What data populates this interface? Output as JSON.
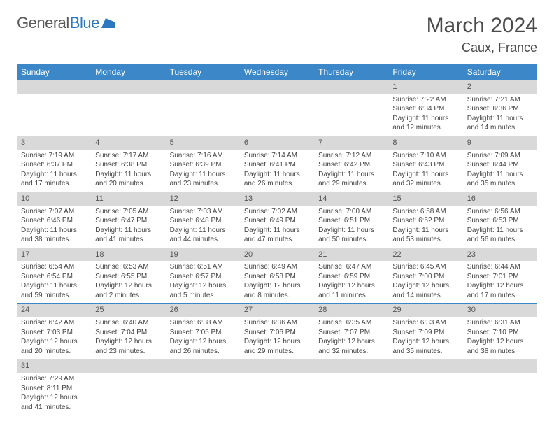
{
  "logo": {
    "part1": "General",
    "part2": "Blue"
  },
  "title": "March 2024",
  "location": "Caux, France",
  "colors": {
    "header_bg": "#3b87c8",
    "header_fg": "#ffffff",
    "daynum_bg": "#d9d9d9",
    "row_border": "#3b87c8",
    "text": "#444444",
    "title": "#4a4a4a"
  },
  "fonts": {
    "title_size": 30,
    "location_size": 18,
    "header_size": 12,
    "cell_size": 10
  },
  "grid": {
    "cols": 7,
    "rows": 6,
    "leading_blanks": 5
  },
  "weekday_headers": [
    "Sunday",
    "Monday",
    "Tuesday",
    "Wednesday",
    "Thursday",
    "Friday",
    "Saturday"
  ],
  "days": [
    {
      "n": 1,
      "sr": "7:22 AM",
      "ss": "6:34 PM",
      "dl": "11 hours and 12 minutes."
    },
    {
      "n": 2,
      "sr": "7:21 AM",
      "ss": "6:36 PM",
      "dl": "11 hours and 14 minutes."
    },
    {
      "n": 3,
      "sr": "7:19 AM",
      "ss": "6:37 PM",
      "dl": "11 hours and 17 minutes."
    },
    {
      "n": 4,
      "sr": "7:17 AM",
      "ss": "6:38 PM",
      "dl": "11 hours and 20 minutes."
    },
    {
      "n": 5,
      "sr": "7:16 AM",
      "ss": "6:39 PM",
      "dl": "11 hours and 23 minutes."
    },
    {
      "n": 6,
      "sr": "7:14 AM",
      "ss": "6:41 PM",
      "dl": "11 hours and 26 minutes."
    },
    {
      "n": 7,
      "sr": "7:12 AM",
      "ss": "6:42 PM",
      "dl": "11 hours and 29 minutes."
    },
    {
      "n": 8,
      "sr": "7:10 AM",
      "ss": "6:43 PM",
      "dl": "11 hours and 32 minutes."
    },
    {
      "n": 9,
      "sr": "7:09 AM",
      "ss": "6:44 PM",
      "dl": "11 hours and 35 minutes."
    },
    {
      "n": 10,
      "sr": "7:07 AM",
      "ss": "6:46 PM",
      "dl": "11 hours and 38 minutes."
    },
    {
      "n": 11,
      "sr": "7:05 AM",
      "ss": "6:47 PM",
      "dl": "11 hours and 41 minutes."
    },
    {
      "n": 12,
      "sr": "7:03 AM",
      "ss": "6:48 PM",
      "dl": "11 hours and 44 minutes."
    },
    {
      "n": 13,
      "sr": "7:02 AM",
      "ss": "6:49 PM",
      "dl": "11 hours and 47 minutes."
    },
    {
      "n": 14,
      "sr": "7:00 AM",
      "ss": "6:51 PM",
      "dl": "11 hours and 50 minutes."
    },
    {
      "n": 15,
      "sr": "6:58 AM",
      "ss": "6:52 PM",
      "dl": "11 hours and 53 minutes."
    },
    {
      "n": 16,
      "sr": "6:56 AM",
      "ss": "6:53 PM",
      "dl": "11 hours and 56 minutes."
    },
    {
      "n": 17,
      "sr": "6:54 AM",
      "ss": "6:54 PM",
      "dl": "11 hours and 59 minutes."
    },
    {
      "n": 18,
      "sr": "6:53 AM",
      "ss": "6:55 PM",
      "dl": "12 hours and 2 minutes."
    },
    {
      "n": 19,
      "sr": "6:51 AM",
      "ss": "6:57 PM",
      "dl": "12 hours and 5 minutes."
    },
    {
      "n": 20,
      "sr": "6:49 AM",
      "ss": "6:58 PM",
      "dl": "12 hours and 8 minutes."
    },
    {
      "n": 21,
      "sr": "6:47 AM",
      "ss": "6:59 PM",
      "dl": "12 hours and 11 minutes."
    },
    {
      "n": 22,
      "sr": "6:45 AM",
      "ss": "7:00 PM",
      "dl": "12 hours and 14 minutes."
    },
    {
      "n": 23,
      "sr": "6:44 AM",
      "ss": "7:01 PM",
      "dl": "12 hours and 17 minutes."
    },
    {
      "n": 24,
      "sr": "6:42 AM",
      "ss": "7:03 PM",
      "dl": "12 hours and 20 minutes."
    },
    {
      "n": 25,
      "sr": "6:40 AM",
      "ss": "7:04 PM",
      "dl": "12 hours and 23 minutes."
    },
    {
      "n": 26,
      "sr": "6:38 AM",
      "ss": "7:05 PM",
      "dl": "12 hours and 26 minutes."
    },
    {
      "n": 27,
      "sr": "6:36 AM",
      "ss": "7:06 PM",
      "dl": "12 hours and 29 minutes."
    },
    {
      "n": 28,
      "sr": "6:35 AM",
      "ss": "7:07 PM",
      "dl": "12 hours and 32 minutes."
    },
    {
      "n": 29,
      "sr": "6:33 AM",
      "ss": "7:09 PM",
      "dl": "12 hours and 35 minutes."
    },
    {
      "n": 30,
      "sr": "6:31 AM",
      "ss": "7:10 PM",
      "dl": "12 hours and 38 minutes."
    },
    {
      "n": 31,
      "sr": "7:29 AM",
      "ss": "8:11 PM",
      "dl": "12 hours and 41 minutes."
    }
  ],
  "labels": {
    "sunrise": "Sunrise:",
    "sunset": "Sunset:",
    "daylight": "Daylight:"
  }
}
